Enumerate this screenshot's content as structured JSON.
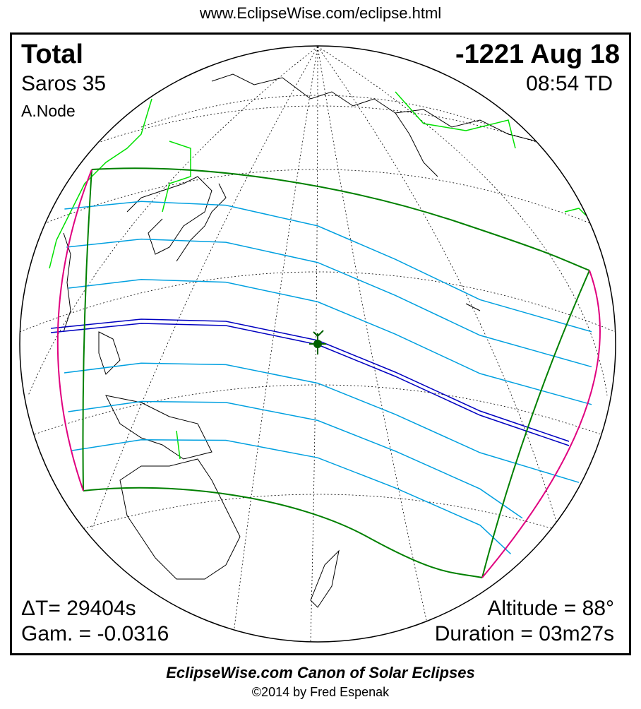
{
  "header": {
    "url": "www.EclipseWise.com/eclipse.html"
  },
  "eclipse": {
    "type": "Total",
    "date": "-1221 Aug 18",
    "saros": "Saros  35",
    "time": "08:54 TD",
    "node": "A.Node",
    "delta_t": "ΔT=  29404s",
    "gamma": "Gam. = -0.0316",
    "altitude": "Altitude = 88°",
    "duration": "Duration = 03m27s"
  },
  "colors": {
    "limits": "#008000",
    "central_line": "#0000c0",
    "penumbra_lines": "#00a0e0",
    "rise_set": "#e0007f",
    "borders": "#00e000",
    "greatest_eclipse": "#006000"
  },
  "footer": {
    "canon": "EclipseWise.com Canon of Solar Eclipses",
    "copyright": "©2014 by Fred Espenak"
  }
}
